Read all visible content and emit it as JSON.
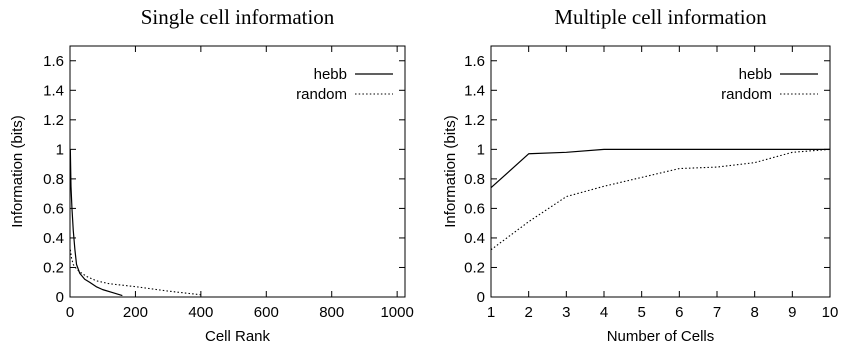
{
  "chart_data": [
    {
      "type": "line",
      "title": "Single cell information",
      "xlabel": "Cell Rank",
      "ylabel": "Information (bits)",
      "xlim": [
        0,
        1024
      ],
      "ylim": [
        0,
        1.7
      ],
      "x_ticks": [
        0,
        200,
        400,
        600,
        800,
        1000
      ],
      "y_ticks": [
        0,
        0.2,
        0.4,
        0.6,
        0.8,
        1,
        1.2,
        1.4,
        1.6
      ],
      "x_tick_labels": [
        "0",
        "200",
        "400",
        "600",
        "800",
        "1000"
      ],
      "y_tick_labels": [
        "0",
        "0.2",
        "0.4",
        "0.6",
        "0.8",
        "1",
        "1.2",
        "1.4",
        "1.6"
      ],
      "grid": false,
      "legend_position": "top-right",
      "series": [
        {
          "name": "hebb",
          "style": "solid",
          "x": [
            1,
            3,
            6,
            10,
            15,
            20,
            30,
            45,
            60,
            80,
            100,
            130,
            160
          ],
          "y": [
            1.0,
            0.75,
            0.6,
            0.45,
            0.32,
            0.22,
            0.16,
            0.12,
            0.1,
            0.07,
            0.05,
            0.03,
            0.01
          ]
        },
        {
          "name": "random",
          "style": "dotted",
          "x": [
            1,
            5,
            10,
            20,
            30,
            50,
            80,
            120,
            200,
            300,
            400
          ],
          "y": [
            0.32,
            0.26,
            0.22,
            0.19,
            0.17,
            0.14,
            0.11,
            0.09,
            0.07,
            0.04,
            0.015
          ]
        }
      ]
    },
    {
      "type": "line",
      "title": "Multiple cell information",
      "xlabel": "Number of Cells",
      "ylabel": "Information (bits)",
      "xlim": [
        1,
        10
      ],
      "ylim": [
        0,
        1.7
      ],
      "x_ticks": [
        1,
        2,
        3,
        4,
        5,
        6,
        7,
        8,
        9,
        10
      ],
      "y_ticks": [
        0,
        0.2,
        0.4,
        0.6,
        0.8,
        1,
        1.2,
        1.4,
        1.6
      ],
      "x_tick_labels": [
        "1",
        "2",
        "3",
        "4",
        "5",
        "6",
        "7",
        "8",
        "9",
        "10"
      ],
      "y_tick_labels": [
        "0",
        "0.2",
        "0.4",
        "0.6",
        "0.8",
        "1",
        "1.2",
        "1.4",
        "1.6"
      ],
      "grid": false,
      "legend_position": "top-right",
      "series": [
        {
          "name": "hebb",
          "style": "solid",
          "x": [
            1,
            2,
            3,
            4,
            5,
            6,
            7,
            8,
            9,
            10
          ],
          "y": [
            0.74,
            0.97,
            0.98,
            1.0,
            1.0,
            1.0,
            1.0,
            1.0,
            1.0,
            1.0
          ]
        },
        {
          "name": "random",
          "style": "dotted",
          "x": [
            1,
            2,
            3,
            4,
            5,
            6,
            7,
            8,
            9,
            10
          ],
          "y": [
            0.32,
            0.51,
            0.68,
            0.75,
            0.81,
            0.87,
            0.88,
            0.91,
            0.98,
            1.0
          ]
        }
      ]
    }
  ]
}
